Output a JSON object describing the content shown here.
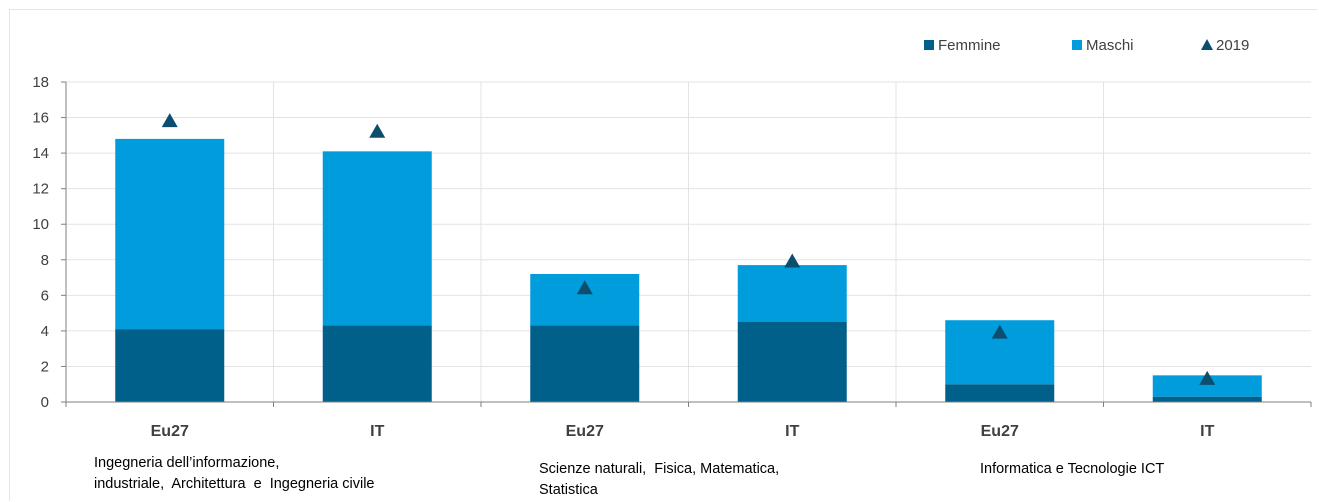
{
  "chart_data": {
    "type": "bar",
    "stacked": true,
    "categories": [
      "Eu27",
      "IT",
      "Eu27",
      "IT",
      "Eu27",
      "IT"
    ],
    "groups": [
      {
        "lines": [
          "Ingegneria dell’informazione,",
          "industriale,  Architettura  e  Ingegneria civile"
        ]
      },
      {
        "lines": [
          "Scienze naturali,  Fisica, Matematica,",
          "Statistica"
        ]
      },
      {
        "lines": [
          "Informatica e Tecnologie ICT"
        ]
      }
    ],
    "series": [
      {
        "name": "Femmine",
        "kind": "bar",
        "color": "#006089",
        "values": [
          4.1,
          4.3,
          4.3,
          4.5,
          1.0,
          0.3
        ]
      },
      {
        "name": "Maschi",
        "kind": "bar",
        "color": "#009cdc",
        "values": [
          10.7,
          9.8,
          2.9,
          3.2,
          3.6,
          1.2
        ]
      },
      {
        "name": "2019",
        "kind": "marker",
        "marker": "triangle",
        "color": "#0d4e6e",
        "values": [
          15.8,
          15.2,
          6.4,
          7.9,
          3.9,
          1.3
        ]
      }
    ],
    "ylim": [
      0,
      18
    ],
    "yticks": [
      "0",
      "2",
      "4",
      "6",
      "8",
      "10",
      "12",
      "14",
      "16",
      "18"
    ],
    "grid": true,
    "legend_position": "top-right"
  }
}
